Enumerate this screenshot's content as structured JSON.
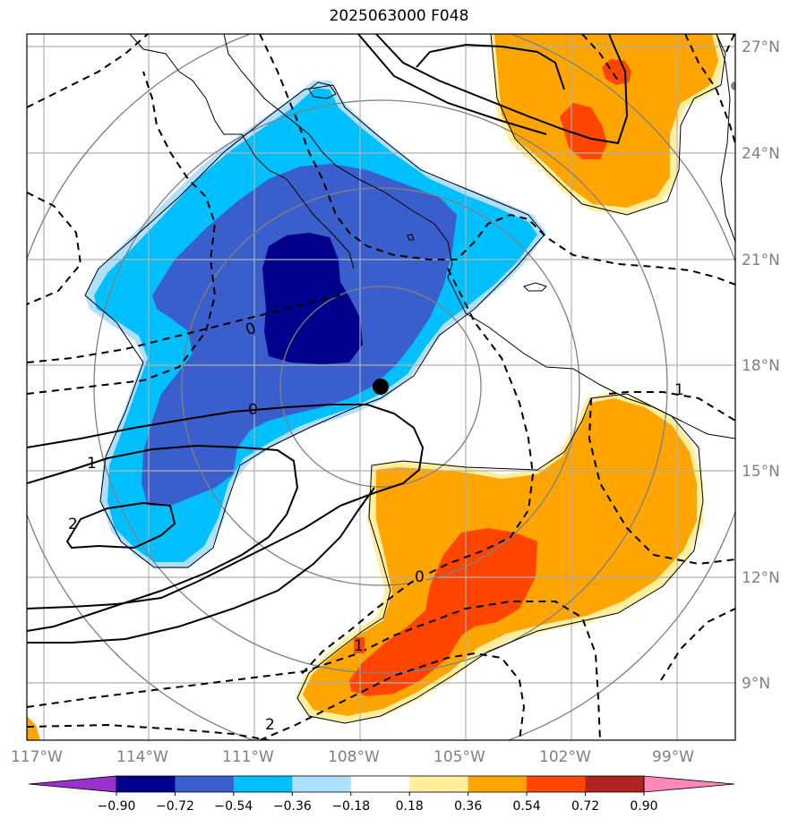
{
  "title": "2025063000 F048",
  "map": {
    "lon_labels": [
      "117°W",
      "114°W",
      "111°W",
      "108°W",
      "105°W",
      "102°W",
      "99°W"
    ],
    "lat_labels": [
      "27°N",
      "24°N",
      "21°N",
      "18°N",
      "15°N",
      "12°N",
      "9°N"
    ],
    "contour_labels": [
      "0",
      "0",
      "0",
      "1",
      "1",
      "1",
      "2",
      "2"
    ],
    "marker": "storm-center-dot"
  },
  "colorbar": {
    "ticks": [
      "−0.90",
      "−0.72",
      "−0.54",
      "−0.36",
      "−0.18",
      "0.18",
      "0.36",
      "0.54",
      "0.72",
      "0.90"
    ],
    "colors": [
      "#9932cc",
      "#00008b",
      "#3a5fcd",
      "#00bfff",
      "#b0e0ff",
      "#ffffff",
      "#ffef9e",
      "#ffa500",
      "#ff4500",
      "#b22222",
      "#ff88b8"
    ]
  },
  "colors": {
    "dark_blue": "#00008b",
    "mid_blue": "#3a5fcd",
    "light_blue": "#00bfff",
    "pale_blue": "#b0e0ff",
    "pale_yellow": "#ffef9e",
    "orange": "#ffa500",
    "red_orange": "#ff4500",
    "grid": "#b0b0b0",
    "ring": "#808080"
  }
}
